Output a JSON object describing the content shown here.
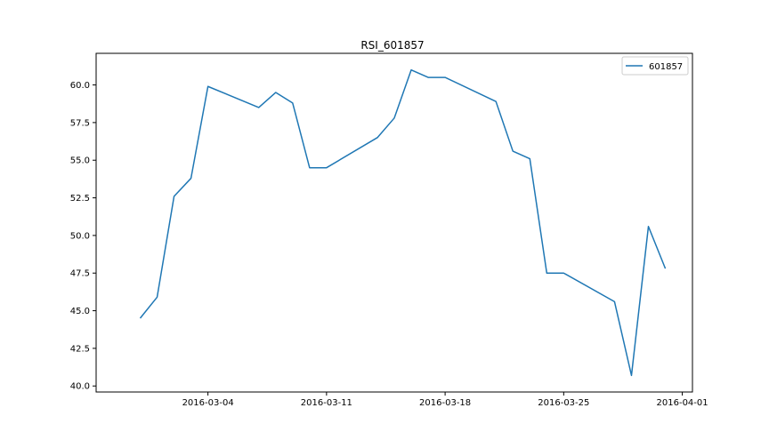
{
  "chart_data": {
    "type": "line",
    "title": "RSI_601857",
    "xlabel": "",
    "ylabel": "",
    "legend_position": "upper right",
    "grid": false,
    "x_ticks": [
      "2016-03-04",
      "2016-03-11",
      "2016-03-18",
      "2016-03-25",
      "2016-04-01"
    ],
    "y_ticks": [
      "40.0",
      "42.5",
      "45.0",
      "47.5",
      "50.0",
      "52.5",
      "55.0",
      "57.5",
      "60.0"
    ],
    "xlim": [
      "2016-02-26T09:36",
      "2016-04-01T14:24"
    ],
    "ylim": [
      39.6,
      62.1
    ],
    "series": [
      {
        "name": "601857",
        "color": "#1f77b4",
        "points": [
          {
            "x": "2016-02-29",
            "y": 44.5
          },
          {
            "x": "2016-03-01",
            "y": 45.9
          },
          {
            "x": "2016-03-02",
            "y": 52.6
          },
          {
            "x": "2016-03-03",
            "y": 53.8
          },
          {
            "x": "2016-03-04",
            "y": 59.9
          },
          {
            "x": "2016-03-07",
            "y": 58.5
          },
          {
            "x": "2016-03-08",
            "y": 59.5
          },
          {
            "x": "2016-03-09",
            "y": 58.8
          },
          {
            "x": "2016-03-10",
            "y": 54.5
          },
          {
            "x": "2016-03-11",
            "y": 54.5
          },
          {
            "x": "2016-03-14",
            "y": 56.5
          },
          {
            "x": "2016-03-15",
            "y": 57.8
          },
          {
            "x": "2016-03-16",
            "y": 61.0
          },
          {
            "x": "2016-03-17",
            "y": 60.5
          },
          {
            "x": "2016-03-18",
            "y": 60.5
          },
          {
            "x": "2016-03-21",
            "y": 58.9
          },
          {
            "x": "2016-03-22",
            "y": 55.6
          },
          {
            "x": "2016-03-23",
            "y": 55.1
          },
          {
            "x": "2016-03-24",
            "y": 47.5
          },
          {
            "x": "2016-03-25",
            "y": 47.5
          },
          {
            "x": "2016-03-28",
            "y": 45.6
          },
          {
            "x": "2016-03-29",
            "y": 40.7
          },
          {
            "x": "2016-03-30",
            "y": 50.6
          },
          {
            "x": "2016-03-31",
            "y": 47.8
          }
        ]
      }
    ]
  }
}
